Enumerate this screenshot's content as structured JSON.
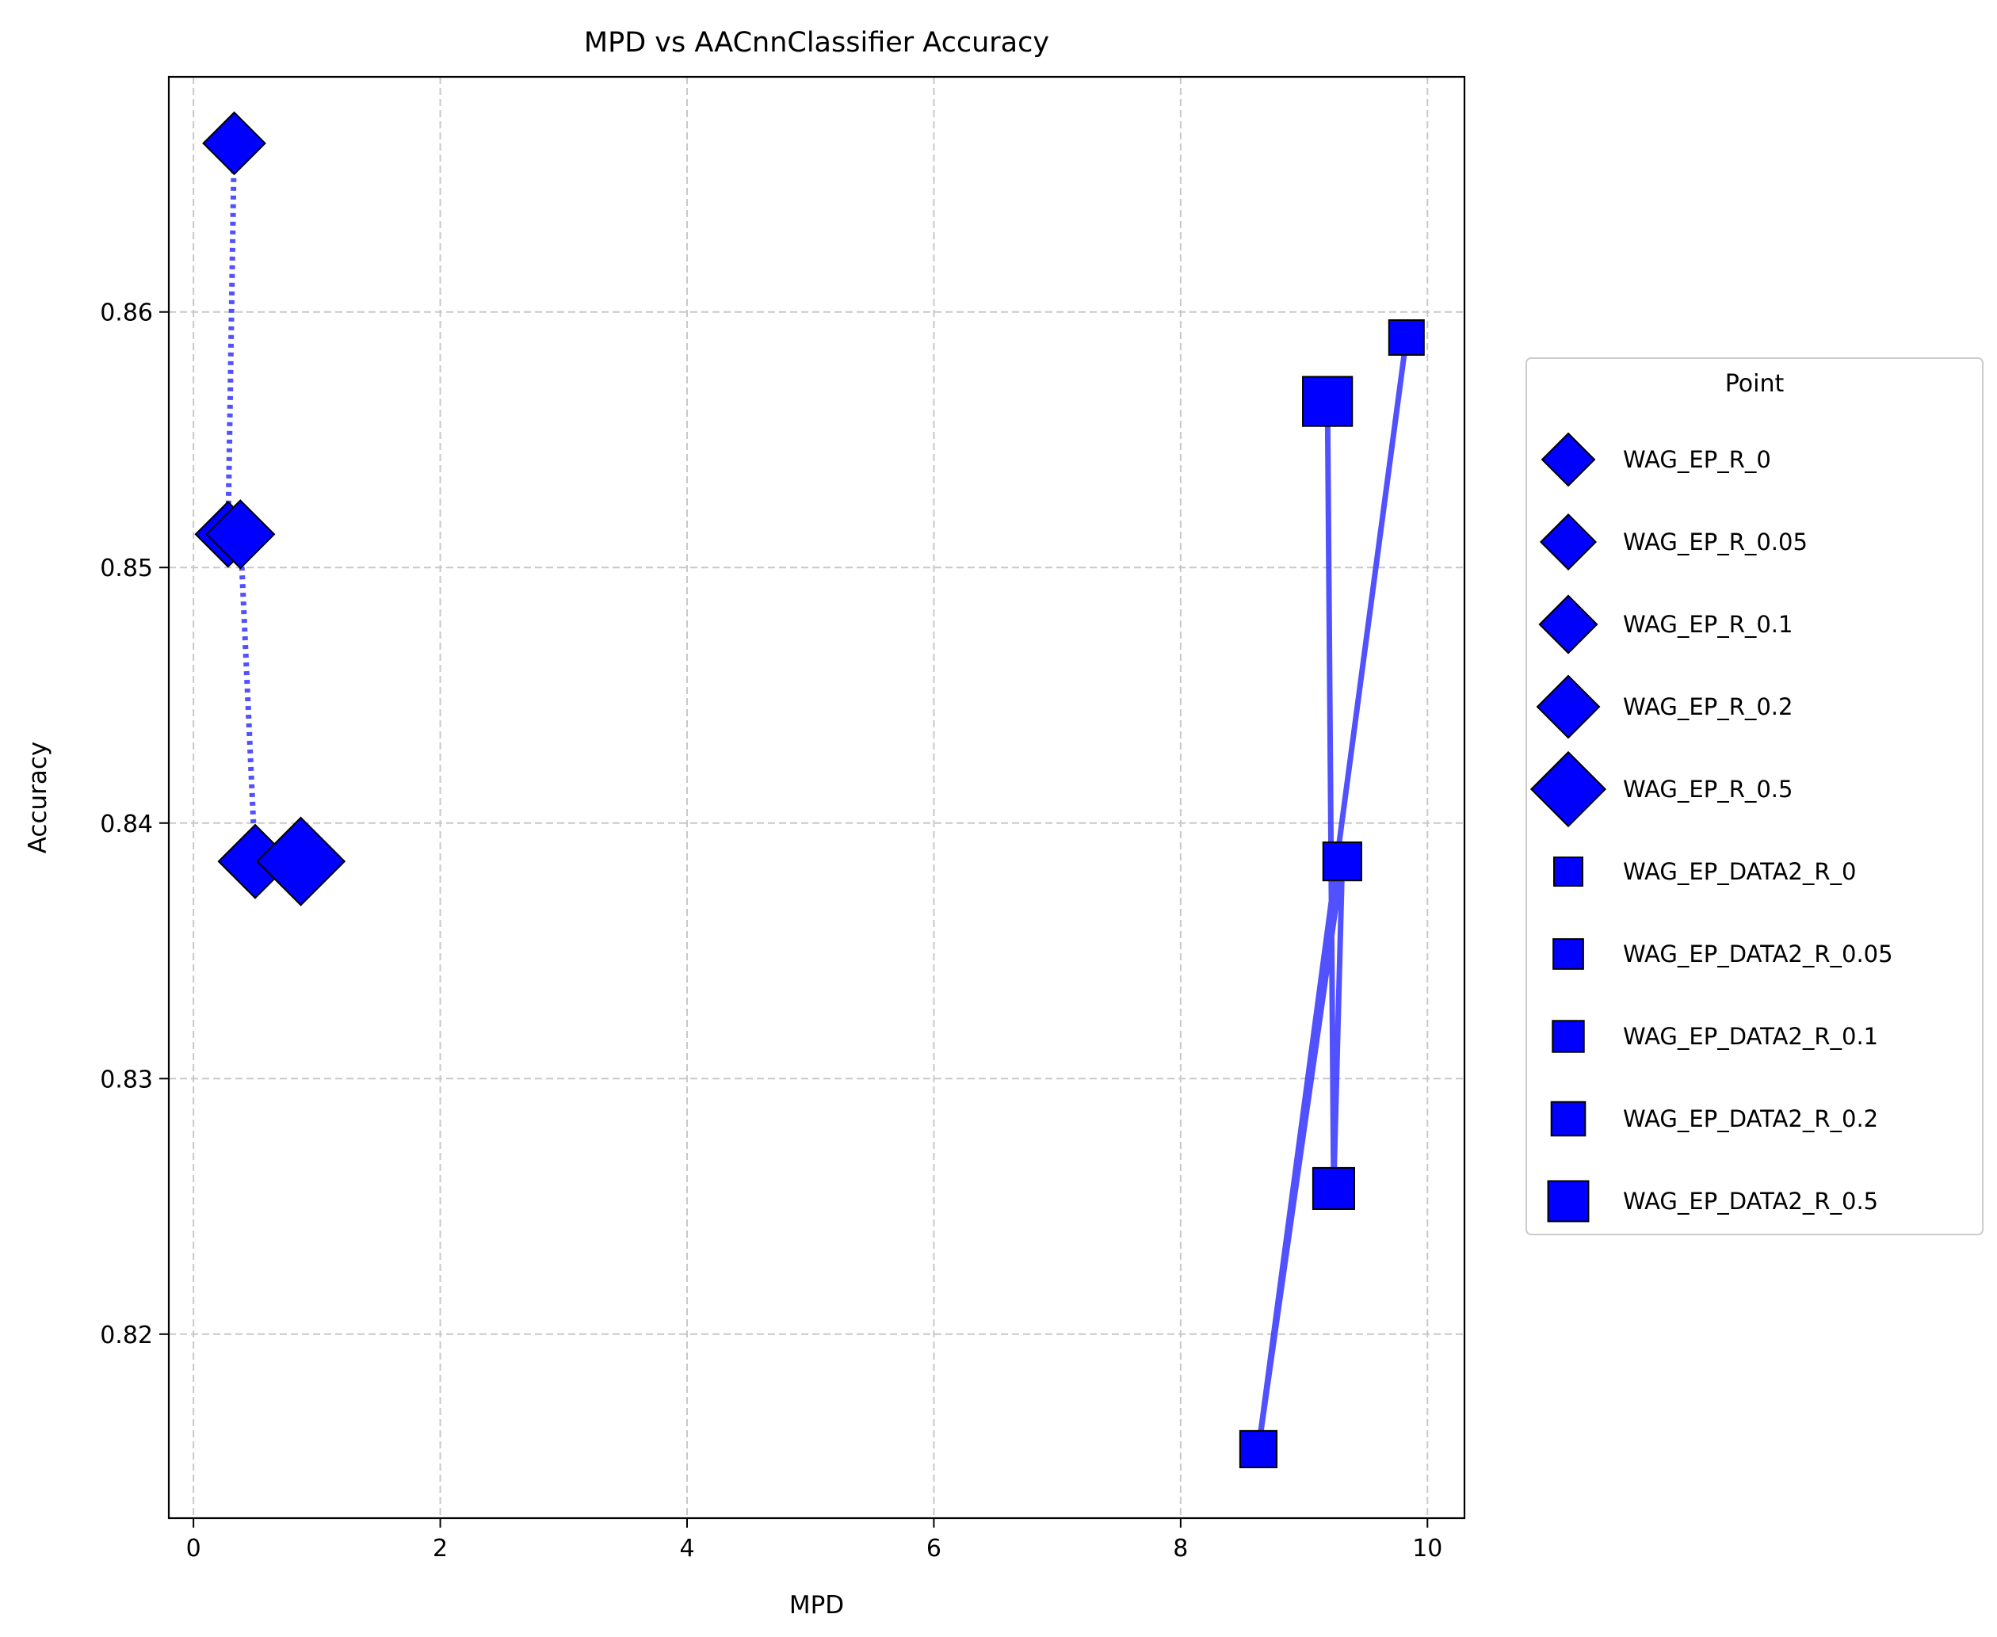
{
  "chart_data": {
    "type": "scatter",
    "title": "MPD vs AACnnClassifier Accuracy",
    "xlabel": "MPD",
    "ylabel": "Accuracy",
    "xlim": [
      -0.2,
      10.3
    ],
    "ylim": [
      0.8128,
      0.8692
    ],
    "xticks": [
      0,
      2,
      4,
      6,
      8,
      10
    ],
    "xtick_labels": [
      "0",
      "2",
      "4",
      "6",
      "8",
      "10"
    ],
    "yticks": [
      0.82,
      0.83,
      0.84,
      0.85,
      0.86
    ],
    "ytick_labels": [
      "0.82",
      "0.83",
      "0.84",
      "0.85",
      "0.86"
    ],
    "grid": true,
    "legend_title": "Point",
    "legend_position": "right-outside",
    "marker_color": "#0000ff",
    "line_color": "#3333ff",
    "series": [
      {
        "group": "WAG_EP",
        "marker": "diamond",
        "line": "dotted",
        "points": [
          {
            "name": "WAG_EP_R_0",
            "x": 0.33,
            "y": 0.8666,
            "size": 1.0
          },
          {
            "name": "WAG_EP_R_0.05",
            "x": 0.28,
            "y": 0.8513,
            "size": 1.1
          },
          {
            "name": "WAG_EP_R_0.1",
            "x": 0.38,
            "y": 0.8513,
            "size": 1.2
          },
          {
            "name": "WAG_EP_R_0.2",
            "x": 0.5,
            "y": 0.8385,
            "size": 1.4
          },
          {
            "name": "WAG_EP_R_0.5",
            "x": 0.87,
            "y": 0.8385,
            "size": 2.0
          }
        ]
      },
      {
        "group": "WAG_EP_DATA2",
        "marker": "square",
        "line": "solid",
        "points": [
          {
            "name": "WAG_EP_DATA2_R_0",
            "x": 9.83,
            "y": 0.859,
            "size": 1.0
          },
          {
            "name": "WAG_EP_DATA2_R_0.05",
            "x": 8.63,
            "y": 0.8155,
            "size": 1.1
          },
          {
            "name": "WAG_EP_DATA2_R_0.1",
            "x": 9.31,
            "y": 0.8385,
            "size": 1.2
          },
          {
            "name": "WAG_EP_DATA2_R_0.2",
            "x": 9.24,
            "y": 0.8257,
            "size": 1.4
          },
          {
            "name": "WAG_EP_DATA2_R_0.5",
            "x": 9.19,
            "y": 0.8565,
            "size": 2.0
          }
        ]
      }
    ]
  }
}
